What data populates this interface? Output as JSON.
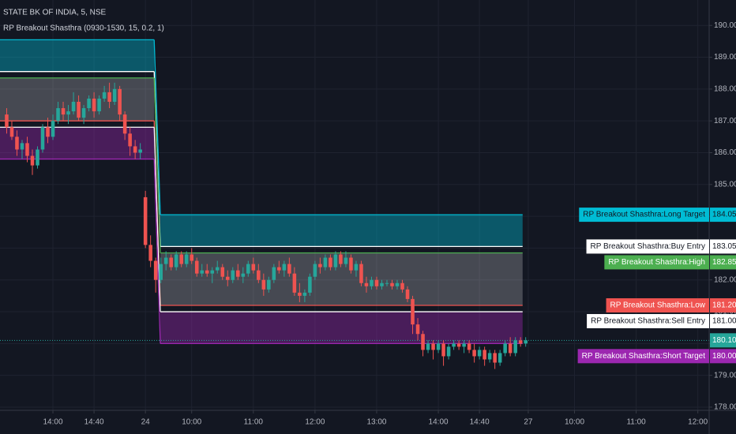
{
  "chart_data": {
    "type": "candlestick",
    "title": "STATE BK OF INDIA, 5, NSE",
    "subtitle": "RP Breakout Shasthra (0930-1530, 15, 0.2, 1)",
    "up_color": "#26a69a",
    "down_color": "#ef5350",
    "grid": true,
    "xlim": [
      -1.3,
      136.7
    ],
    "xticks": [
      {
        "value": 9,
        "label": "14:00"
      },
      {
        "value": 17,
        "label": "14:40"
      },
      {
        "value": 27,
        "label": "24"
      },
      {
        "value": 36,
        "label": "10:00"
      },
      {
        "value": 48,
        "label": "11:00"
      },
      {
        "value": 60,
        "label": "12:00"
      },
      {
        "value": 72,
        "label": "13:00"
      },
      {
        "value": 84,
        "label": "14:00"
      },
      {
        "value": 92,
        "label": "14:40"
      },
      {
        "value": 101.5,
        "label": "27"
      },
      {
        "value": 110.5,
        "label": "10:00"
      },
      {
        "value": 122.5,
        "label": "11:00"
      },
      {
        "value": 134.5,
        "label": "12:00"
      }
    ],
    "ylim": [
      177.9,
      190.8
    ],
    "yticks": [
      {
        "value": 178,
        "label": "178.00"
      },
      {
        "value": 179,
        "label": "179.00"
      },
      {
        "value": 180,
        "label": "180.00"
      },
      {
        "value": 181,
        "label": "181.00"
      },
      {
        "value": 182,
        "label": "182.00"
      },
      {
        "value": 183,
        "label": "183.00"
      },
      {
        "value": 184,
        "label": "184.00"
      },
      {
        "value": 185,
        "label": "185.00"
      },
      {
        "value": 186,
        "label": "186.00"
      },
      {
        "value": 187,
        "label": "187.00"
      },
      {
        "value": 188,
        "label": "188.00"
      },
      {
        "value": 189,
        "label": "189.00"
      },
      {
        "value": 190,
        "label": "190.00"
      }
    ],
    "candles": [
      [
        187.2,
        187.4,
        186.6,
        186.8
      ],
      [
        186.8,
        187.0,
        186.4,
        186.5
      ],
      [
        186.5,
        186.7,
        185.9,
        186.1
      ],
      [
        186.1,
        186.4,
        185.8,
        186.3
      ],
      [
        186.3,
        186.5,
        185.7,
        185.9
      ],
      [
        185.9,
        186.1,
        185.3,
        185.6
      ],
      [
        185.6,
        186.2,
        185.5,
        186.1
      ],
      [
        186.1,
        186.9,
        186.0,
        186.8
      ],
      [
        186.8,
        187.1,
        186.3,
        186.5
      ],
      [
        186.5,
        187.2,
        186.4,
        187.0
      ],
      [
        187.0,
        187.6,
        186.9,
        187.4
      ],
      [
        187.4,
        187.6,
        187.0,
        187.2
      ],
      [
        187.2,
        187.5,
        186.9,
        187.3
      ],
      [
        187.3,
        187.9,
        187.2,
        187.6
      ],
      [
        187.6,
        187.8,
        187.0,
        187.1
      ],
      [
        187.1,
        187.5,
        186.9,
        187.4
      ],
      [
        187.4,
        187.8,
        187.3,
        187.7
      ],
      [
        187.7,
        187.9,
        187.1,
        187.3
      ],
      [
        187.3,
        187.8,
        187.2,
        187.7
      ],
      [
        187.7,
        188.1,
        187.6,
        187.9
      ],
      [
        187.9,
        188.2,
        187.4,
        187.6
      ],
      [
        187.6,
        188.2,
        187.5,
        188.0
      ],
      [
        188.0,
        188.1,
        187.0,
        187.2
      ],
      [
        187.2,
        187.3,
        186.4,
        186.6
      ],
      [
        186.6,
        186.8,
        185.9,
        186.2
      ],
      [
        186.2,
        186.4,
        185.8,
        186.0
      ],
      [
        186.0,
        186.3,
        185.8,
        186.1
      ],
      [
        184.6,
        184.8,
        183.0,
        183.1
      ],
      [
        183.1,
        183.4,
        182.4,
        182.6
      ],
      [
        182.6,
        182.7,
        181.6,
        182.0
      ],
      [
        182.0,
        182.7,
        181.9,
        182.5
      ],
      [
        182.5,
        182.9,
        182.3,
        182.7
      ],
      [
        182.7,
        182.8,
        182.3,
        182.4
      ],
      [
        182.4,
        182.9,
        182.3,
        182.8
      ],
      [
        182.8,
        182.9,
        182.4,
        182.5
      ],
      [
        182.5,
        182.9,
        182.4,
        182.8
      ],
      [
        182.8,
        183.0,
        182.5,
        182.6
      ],
      [
        182.6,
        182.7,
        182.1,
        182.2
      ],
      [
        182.2,
        182.5,
        182.1,
        182.3
      ],
      [
        182.3,
        182.5,
        182.1,
        182.2
      ],
      [
        182.2,
        182.4,
        181.9,
        182.3
      ],
      [
        182.3,
        182.6,
        182.2,
        182.4
      ],
      [
        182.4,
        182.5,
        182.0,
        182.1
      ],
      [
        182.1,
        182.3,
        181.8,
        182.0
      ],
      [
        182.0,
        182.4,
        181.9,
        182.3
      ],
      [
        182.3,
        182.5,
        182.0,
        182.1
      ],
      [
        182.1,
        182.4,
        181.9,
        182.2
      ],
      [
        182.2,
        182.6,
        182.1,
        182.5
      ],
      [
        182.5,
        182.7,
        182.2,
        182.3
      ],
      [
        182.3,
        182.5,
        181.9,
        182.0
      ],
      [
        182.0,
        182.2,
        181.5,
        181.7
      ],
      [
        181.7,
        182.1,
        181.6,
        182.0
      ],
      [
        182.0,
        182.5,
        181.9,
        182.4
      ],
      [
        182.4,
        182.6,
        182.2,
        182.3
      ],
      [
        182.3,
        182.6,
        182.1,
        182.5
      ],
      [
        182.5,
        182.7,
        182.1,
        182.2
      ],
      [
        182.2,
        182.4,
        181.5,
        181.6
      ],
      [
        181.6,
        181.9,
        181.3,
        181.5
      ],
      [
        181.5,
        181.7,
        181.3,
        181.6
      ],
      [
        181.6,
        182.2,
        181.5,
        182.1
      ],
      [
        182.1,
        182.6,
        182.0,
        182.5
      ],
      [
        182.5,
        182.7,
        182.2,
        182.4
      ],
      [
        182.4,
        182.8,
        182.3,
        182.7
      ],
      [
        182.7,
        182.8,
        182.3,
        182.4
      ],
      [
        182.4,
        182.9,
        182.3,
        182.8
      ],
      [
        182.8,
        182.9,
        182.4,
        182.5
      ],
      [
        182.5,
        182.9,
        182.4,
        182.7
      ],
      [
        182.7,
        182.8,
        182.2,
        182.3
      ],
      [
        182.3,
        182.6,
        182.1,
        182.5
      ],
      [
        182.5,
        182.6,
        181.8,
        181.9
      ],
      [
        181.9,
        182.1,
        181.6,
        181.8
      ],
      [
        181.8,
        182.1,
        181.7,
        182.0
      ],
      [
        182.0,
        182.1,
        181.7,
        181.8
      ],
      [
        181.8,
        182.0,
        181.7,
        181.9
      ],
      [
        181.9,
        182.0,
        181.8,
        181.9
      ],
      [
        181.9,
        182.0,
        181.7,
        181.8
      ],
      [
        181.8,
        182.0,
        181.7,
        181.9
      ],
      [
        181.9,
        182.0,
        181.6,
        181.7
      ],
      [
        181.7,
        181.8,
        181.3,
        181.4
      ],
      [
        181.4,
        181.5,
        180.3,
        180.6
      ],
      [
        180.6,
        180.8,
        180.1,
        180.3
      ],
      [
        180.3,
        180.4,
        179.6,
        179.8
      ],
      [
        179.8,
        180.1,
        179.7,
        180.0
      ],
      [
        180.0,
        180.1,
        179.5,
        179.8
      ],
      [
        179.8,
        180.1,
        179.7,
        180.0
      ],
      [
        180.0,
        180.1,
        179.3,
        179.6
      ],
      [
        179.6,
        180.0,
        179.5,
        179.9
      ],
      [
        179.9,
        180.1,
        179.8,
        180.0
      ],
      [
        180.0,
        180.1,
        179.8,
        179.9
      ],
      [
        179.9,
        180.1,
        179.7,
        180.0
      ],
      [
        180.0,
        180.1,
        179.7,
        179.8
      ],
      [
        179.8,
        180.0,
        179.4,
        179.6
      ],
      [
        179.6,
        179.9,
        179.5,
        179.8
      ],
      [
        179.8,
        179.9,
        179.3,
        179.5
      ],
      [
        179.5,
        179.8,
        179.4,
        179.7
      ],
      [
        179.7,
        179.8,
        179.2,
        179.4
      ],
      [
        179.4,
        179.8,
        179.3,
        179.7
      ],
      [
        179.7,
        180.1,
        179.6,
        180.0
      ],
      [
        180.0,
        180.2,
        179.6,
        179.7
      ],
      [
        179.7,
        180.2,
        179.6,
        180.1
      ],
      [
        180.1,
        180.2,
        179.9,
        180.0
      ],
      [
        180.0,
        180.2,
        179.9,
        180.1
      ]
    ],
    "last_price_label": "180.10",
    "last_price_color": "#26a69a",
    "sessions": [
      {
        "from": -1.3,
        "to": 28.7
      },
      {
        "from": 29.9,
        "to": 100.4
      }
    ],
    "levels": [
      {
        "name": "RP Breakout Shasthra:Long Target",
        "color": "#00bcd4",
        "text_color": "#131722",
        "fill": "rgba(0,188,212,0.4)",
        "values": [
          189.55,
          184.05
        ],
        "value_label": "184.05"
      },
      {
        "name": "RP Breakout Shasthra:Buy Entry",
        "color": "#ffffff",
        "text_color": "#131722",
        "values": [
          188.55,
          183.05
        ],
        "value_label": "183.05"
      },
      {
        "name": "RP Breakout Shasthra:High",
        "color": "#4caf50",
        "text_color": "#ffffff",
        "fill": "rgba(255,255,255,0.22)",
        "values": [
          188.35,
          182.85
        ],
        "value_label": "182.85"
      },
      {
        "name": "RP Breakout Shasthra:Low",
        "color": "#ef5350",
        "text_color": "#ffffff",
        "values": [
          187.0,
          181.2
        ],
        "value_label": "181.20"
      },
      {
        "name": "RP Breakout Shasthra:Sell Entry",
        "color": "#ffffff",
        "text_color": "#131722",
        "fill": "rgba(156,39,176,0.4)",
        "values": [
          186.8,
          181.0
        ],
        "value_label": "181.00"
      },
      {
        "name": "RP Breakout Shasthra:Short Target",
        "color": "#9c27b0",
        "text_color": "#ffffff",
        "values": [
          185.8,
          180.0
        ],
        "value_label": "180.00"
      }
    ]
  }
}
